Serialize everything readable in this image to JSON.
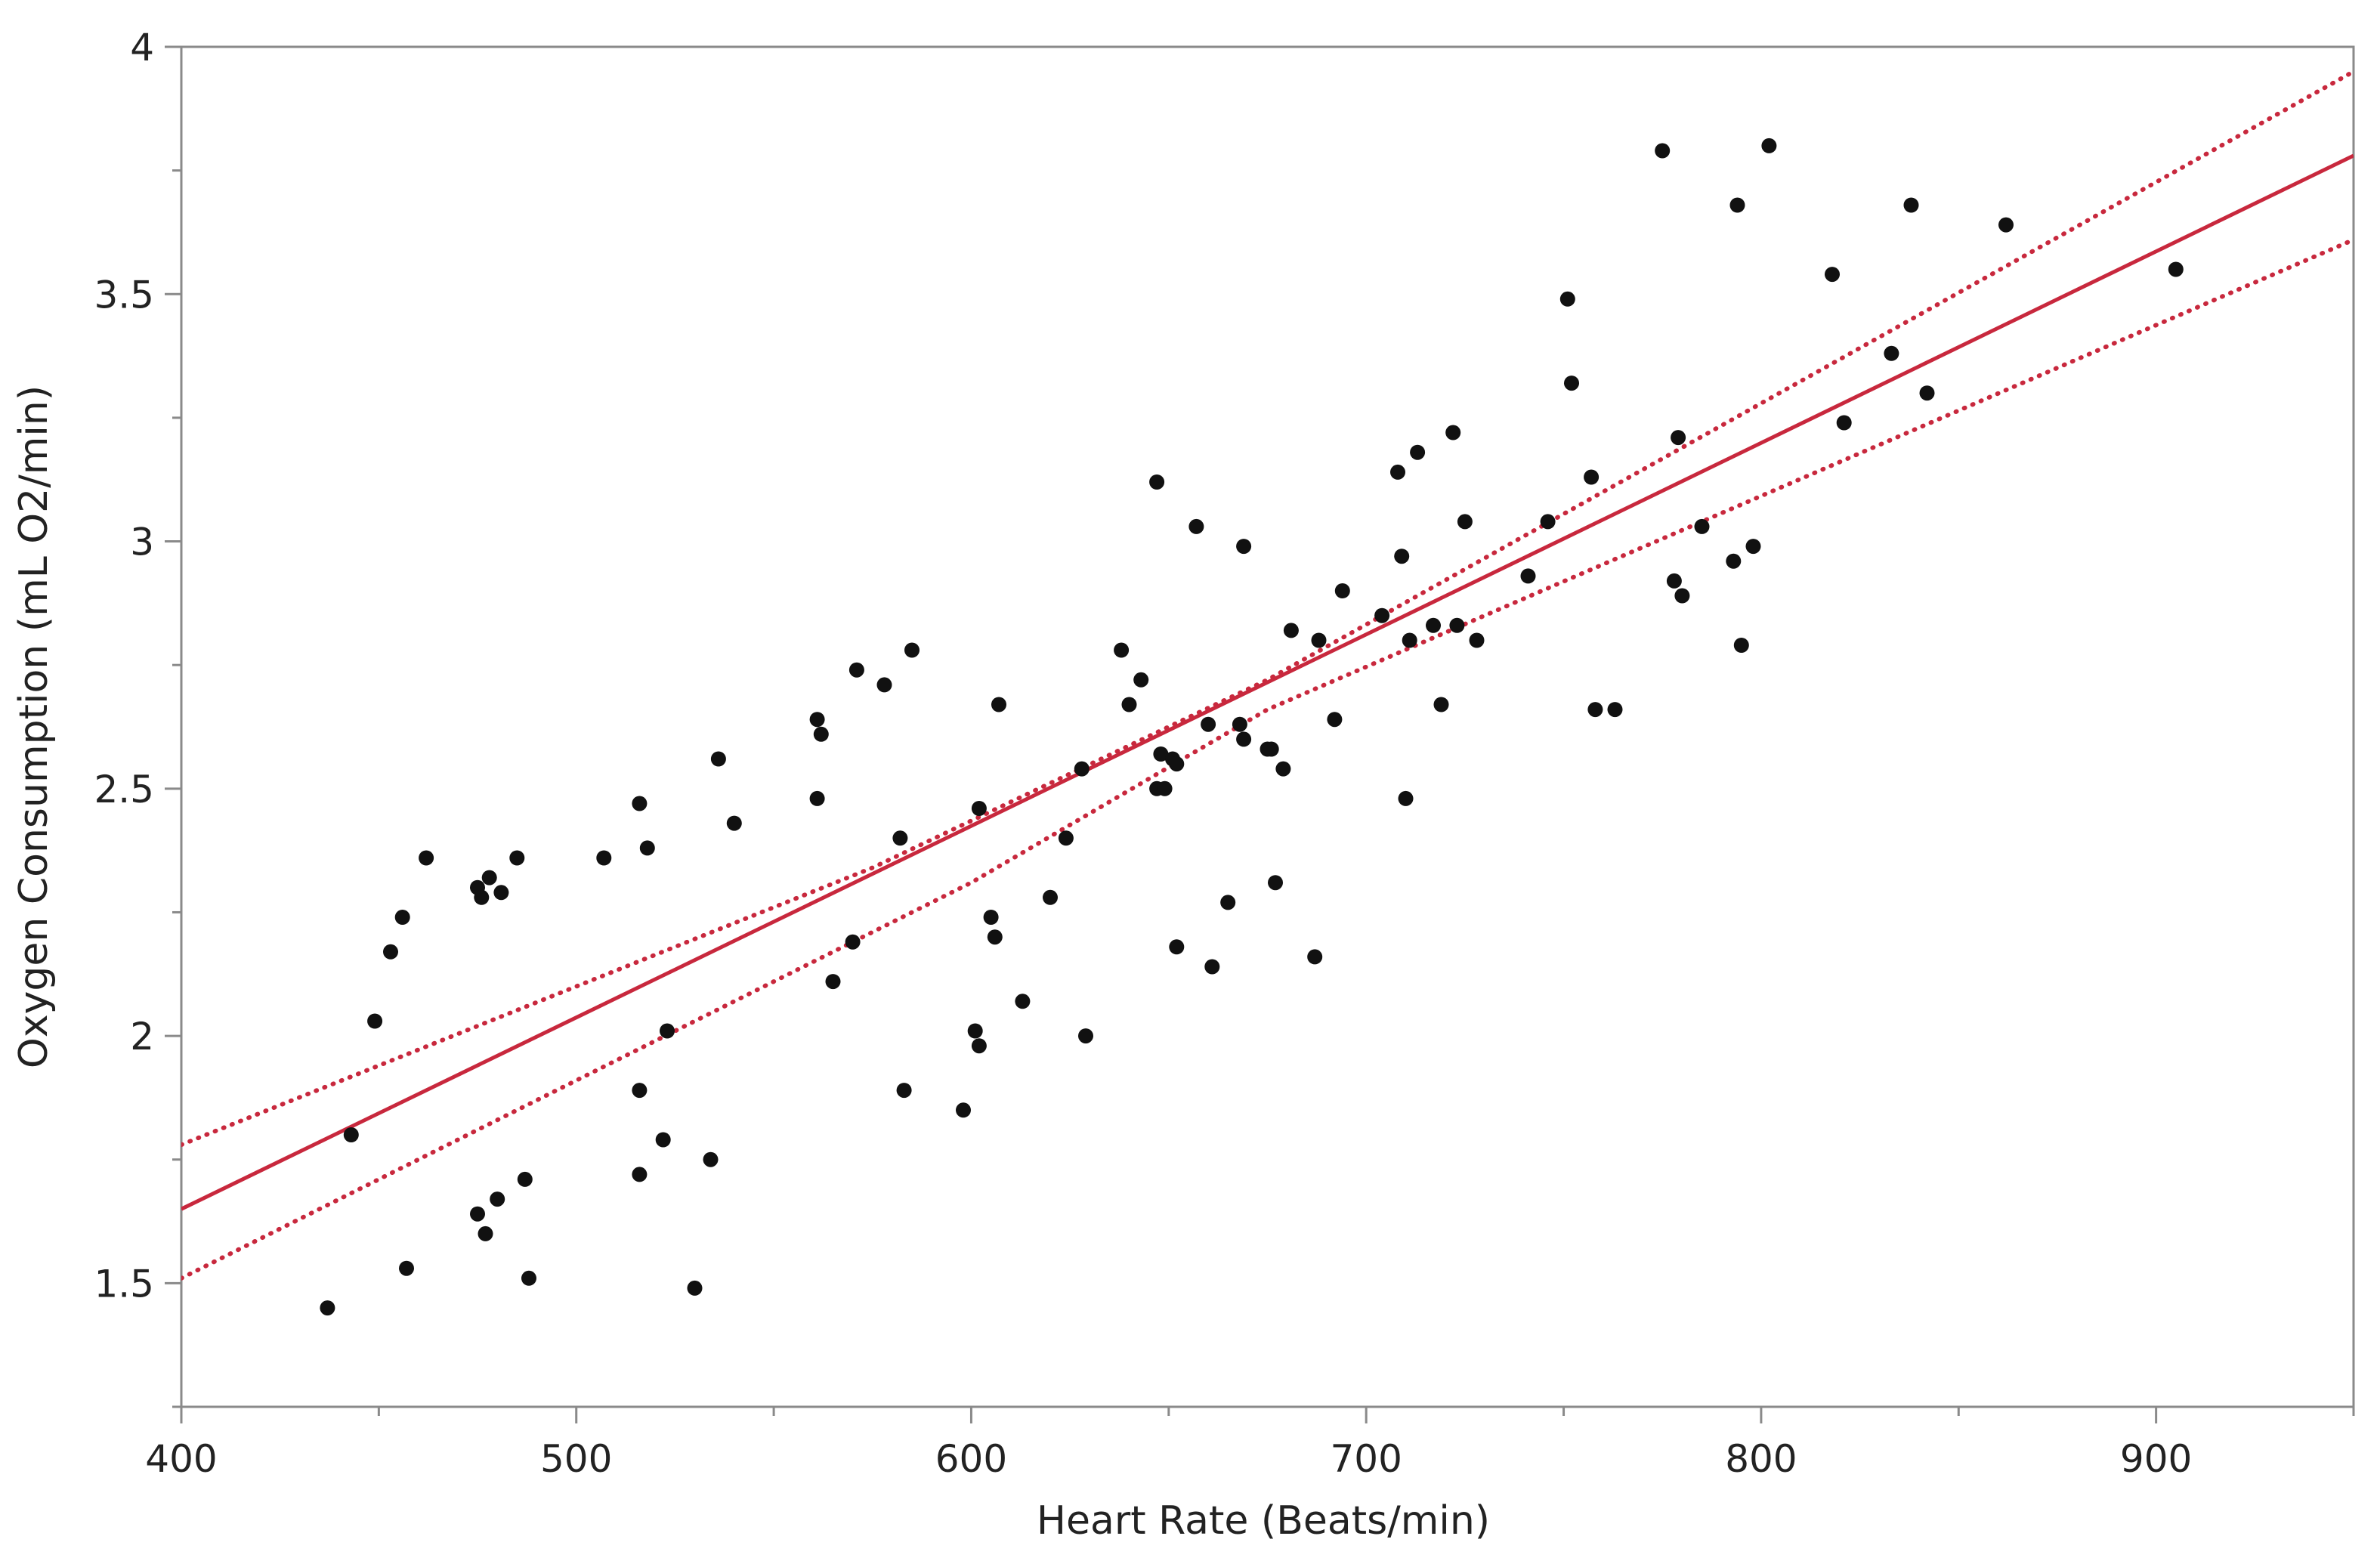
{
  "chart_data": {
    "type": "scatter",
    "title": "",
    "xlabel": "Heart Rate (Beats/min)",
    "ylabel": "Oxygen Consumption (mL O2/min)",
    "xlim": [
      400,
      950
    ],
    "ylim": [
      1.25,
      4
    ],
    "x_ticks": [
      400,
      500,
      600,
      700,
      800,
      900
    ],
    "x_minor_ticks": [
      450,
      550,
      650,
      750,
      850,
      950
    ],
    "y_ticks": [
      1.5,
      2,
      2.5,
      3,
      3.5,
      4
    ],
    "y_tick_labels": [
      "1.5",
      "2",
      "2.5",
      "3",
      "3.5",
      "4"
    ],
    "y_minor_ticks": [
      1.25,
      1.75,
      2.25,
      2.75,
      3.25,
      3.75
    ],
    "grid": false,
    "series": [
      {
        "kind": "points",
        "color": "#111111",
        "points": [
          [
            437,
            1.45
          ],
          [
            443,
            1.8
          ],
          [
            449,
            2.03
          ],
          [
            453,
            2.17
          ],
          [
            456,
            2.24
          ],
          [
            457,
            1.53
          ],
          [
            462,
            2.36
          ],
          [
            475,
            2.3
          ],
          [
            476,
            2.28
          ],
          [
            475,
            1.64
          ],
          [
            477,
            1.6
          ],
          [
            478,
            2.32
          ],
          [
            480,
            1.67
          ],
          [
            481,
            2.29
          ],
          [
            485,
            2.36
          ],
          [
            487,
            1.71
          ],
          [
            488,
            1.51
          ],
          [
            507,
            2.36
          ],
          [
            516,
            2.47
          ],
          [
            516,
            1.89
          ],
          [
            516,
            1.72
          ],
          [
            518,
            2.38
          ],
          [
            522,
            1.79
          ],
          [
            523,
            2.01
          ],
          [
            530,
            1.49
          ],
          [
            534,
            1.75
          ],
          [
            536,
            2.56
          ],
          [
            540,
            2.43
          ],
          [
            561,
            2.64
          ],
          [
            561,
            2.48
          ],
          [
            562,
            2.61
          ],
          [
            565,
            2.11
          ],
          [
            570,
            2.19
          ],
          [
            571,
            2.74
          ],
          [
            578,
            2.71
          ],
          [
            582,
            2.4
          ],
          [
            583,
            1.89
          ],
          [
            585,
            2.78
          ],
          [
            598,
            1.85
          ],
          [
            601,
            2.01
          ],
          [
            602,
            1.98
          ],
          [
            602,
            2.46
          ],
          [
            605,
            2.24
          ],
          [
            606,
            2.2
          ],
          [
            607,
            2.67
          ],
          [
            613,
            2.07
          ],
          [
            620,
            2.28
          ],
          [
            624,
            2.4
          ],
          [
            628,
            2.54
          ],
          [
            629,
            2.0
          ],
          [
            638,
            2.78
          ],
          [
            640,
            2.67
          ],
          [
            643,
            2.72
          ],
          [
            647,
            3.12
          ],
          [
            647,
            2.5
          ],
          [
            648,
            2.57
          ],
          [
            649,
            2.5
          ],
          [
            651,
            2.56
          ],
          [
            652,
            2.55
          ],
          [
            652,
            2.18
          ],
          [
            657,
            3.03
          ],
          [
            660,
            2.63
          ],
          [
            661,
            2.14
          ],
          [
            665,
            2.27
          ],
          [
            668,
            2.63
          ],
          [
            669,
            2.99
          ],
          [
            669,
            2.6
          ],
          [
            675,
            2.58
          ],
          [
            676,
            2.58
          ],
          [
            677,
            2.31
          ],
          [
            679,
            2.54
          ],
          [
            681,
            2.82
          ],
          [
            687,
            2.16
          ],
          [
            688,
            2.8
          ],
          [
            692,
            2.64
          ],
          [
            694,
            2.9
          ],
          [
            704,
            2.85
          ],
          [
            708,
            3.14
          ],
          [
            709,
            2.97
          ],
          [
            710,
            2.48
          ],
          [
            711,
            2.8
          ],
          [
            713,
            3.18
          ],
          [
            717,
            2.83
          ],
          [
            719,
            2.67
          ],
          [
            722,
            3.22
          ],
          [
            723,
            2.83
          ],
          [
            725,
            3.04
          ],
          [
            728,
            2.8
          ],
          [
            741,
            2.93
          ],
          [
            746,
            3.04
          ],
          [
            751,
            3.49
          ],
          [
            752,
            3.32
          ],
          [
            757,
            3.13
          ],
          [
            758,
            2.66
          ],
          [
            763,
            2.66
          ],
          [
            775,
            3.79
          ],
          [
            778,
            2.92
          ],
          [
            779,
            3.21
          ],
          [
            780,
            2.89
          ],
          [
            785,
            3.03
          ],
          [
            793,
            2.96
          ],
          [
            794,
            3.68
          ],
          [
            795,
            2.79
          ],
          [
            798,
            2.99
          ],
          [
            802,
            3.8
          ],
          [
            818,
            3.54
          ],
          [
            821,
            3.24
          ],
          [
            833,
            3.38
          ],
          [
            838,
            3.68
          ],
          [
            842,
            3.3
          ],
          [
            862,
            3.64
          ],
          [
            905,
            3.55
          ]
        ]
      },
      {
        "kind": "regression-line",
        "color": "#c8283d",
        "line": [
          [
            400,
            1.65
          ],
          [
            950,
            3.78
          ]
        ]
      },
      {
        "kind": "confidence-upper",
        "color": "#c8283d",
        "line": [
          [
            400,
            1.78
          ],
          [
            575,
            2.34
          ],
          [
            675,
            2.72
          ],
          [
            950,
            3.95
          ]
        ]
      },
      {
        "kind": "confidence-lower",
        "color": "#c8283d",
        "line": [
          [
            400,
            1.51
          ],
          [
            600,
            2.31
          ],
          [
            675,
            2.66
          ],
          [
            950,
            3.61
          ]
        ]
      }
    ]
  }
}
